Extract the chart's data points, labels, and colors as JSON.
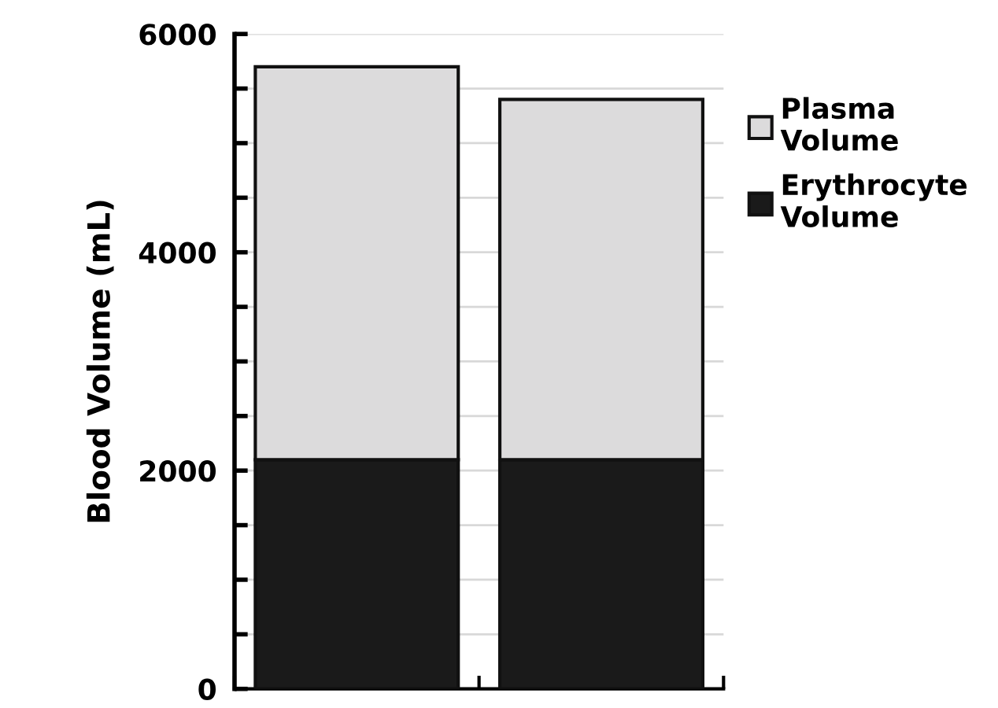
{
  "chart_data": {
    "type": "bar",
    "stacked": true,
    "ylabel": "Blood Volume (mL)",
    "categories": [
      null,
      null
    ],
    "series": [
      {
        "name": "Erythrocyte\nVolume",
        "color": "#1a1a1a",
        "values": [
          2100,
          2100
        ]
      },
      {
        "name": "Plasma\nVolume",
        "color": "#dcdbdc",
        "values": [
          3600,
          3300
        ]
      }
    ],
    "ylim": [
      0,
      6000
    ],
    "yticks": [
      0,
      {
        "value": 500,
        "label": null
      },
      {
        "value": 1000,
        "label": null
      },
      {
        "value": 1500,
        "label": null
      },
      2000,
      {
        "value": 2500,
        "label": null
      },
      {
        "value": 3000,
        "label": null
      },
      {
        "value": 3500,
        "label": null
      },
      4000,
      {
        "value": 4500,
        "label": null
      },
      {
        "value": 5000,
        "label": null
      },
      {
        "value": 5500,
        "label": null
      },
      6000
    ],
    "grid": "y",
    "legend": "right"
  }
}
